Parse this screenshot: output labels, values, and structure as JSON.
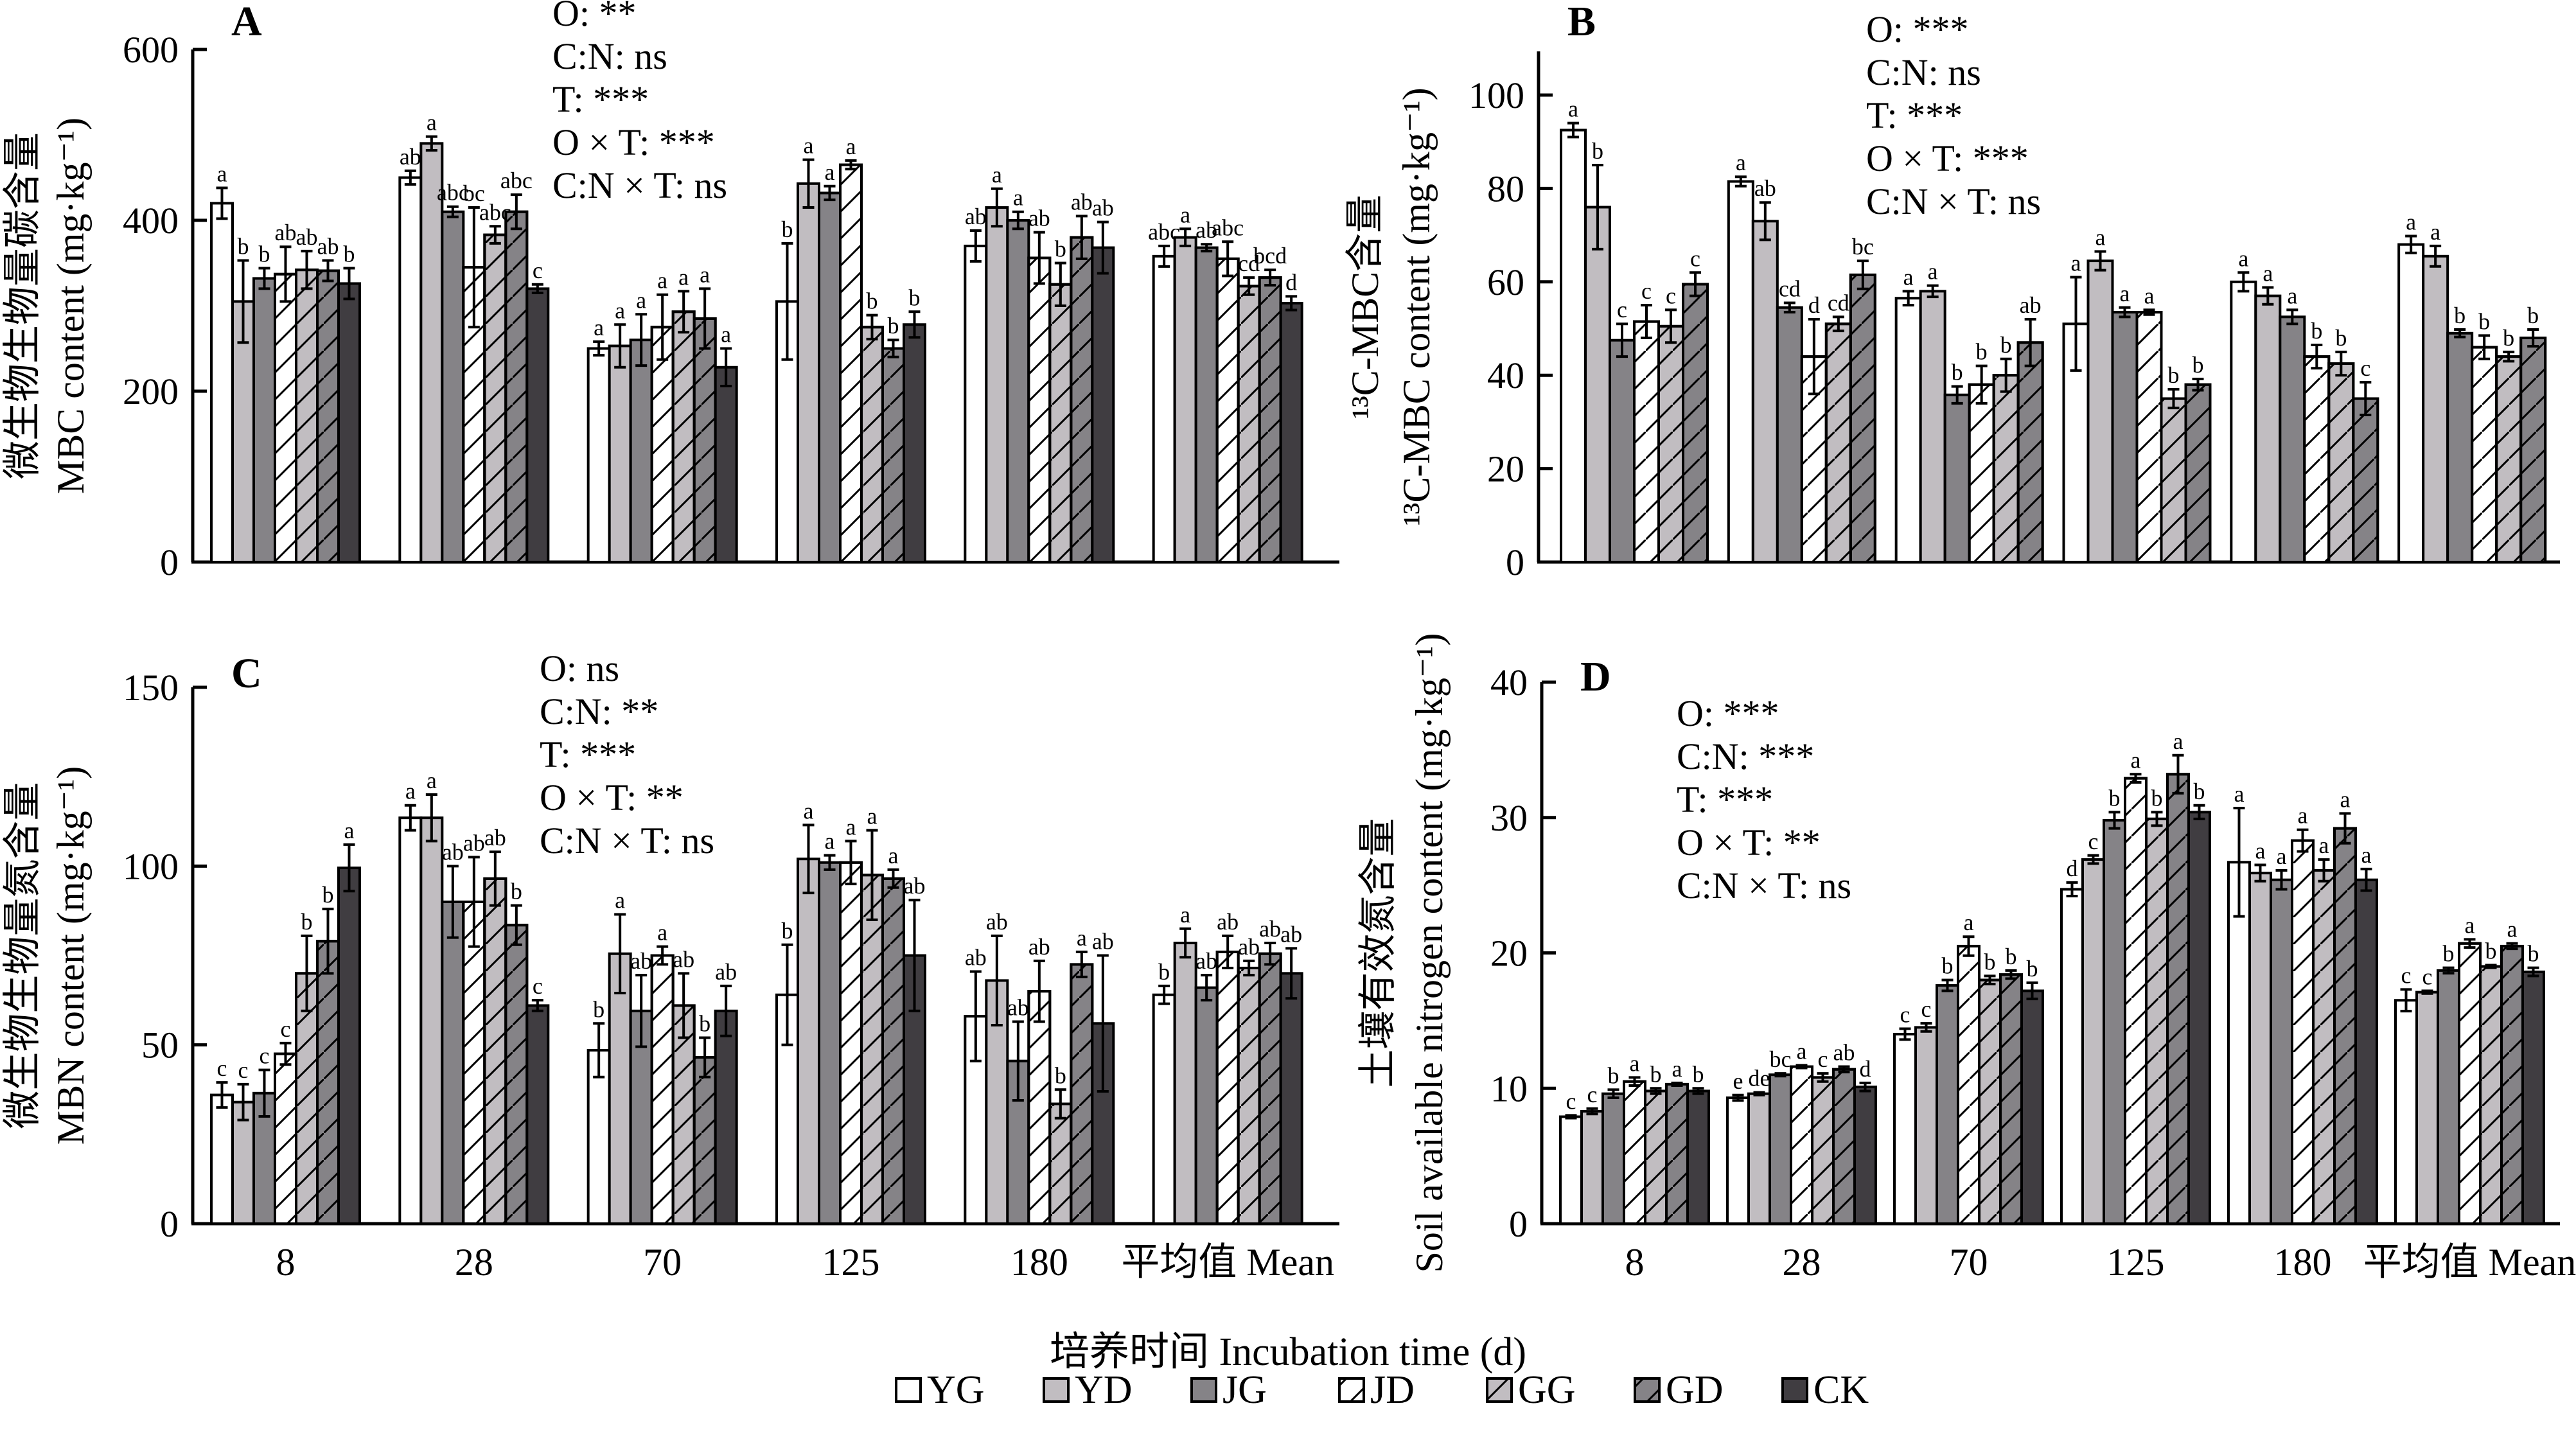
{
  "figure": {
    "xlabel": "培养时间 Incubation time (d)",
    "legend": [
      {
        "key": "YG",
        "label": "YG",
        "fill": "#ffffff",
        "hatch": false
      },
      {
        "key": "YD",
        "label": "YD",
        "fill": "#c1bdc1",
        "hatch": false
      },
      {
        "key": "JG",
        "label": "JG",
        "fill": "#858387",
        "hatch": false
      },
      {
        "key": "JD",
        "label": "JD",
        "fill": "#ffffff",
        "hatch": true
      },
      {
        "key": "GG",
        "label": "GG",
        "fill": "#c1bdc1",
        "hatch": true
      },
      {
        "key": "GD",
        "label": "GD",
        "fill": "#858387",
        "hatch": true
      },
      {
        "key": "CK",
        "label": "CK",
        "fill": "#403d41",
        "hatch": false
      }
    ]
  },
  "chart_data": [
    {
      "type": "bar",
      "panel": "A",
      "ylabel_cn": "微生物生物量碳含量",
      "ylabel_en": "MBC content (mg·kg⁻¹)",
      "ylim": [
        0,
        600
      ],
      "yticks": [
        0,
        200,
        400,
        600
      ],
      "categories": [
        "8",
        "28",
        "70",
        "125",
        "180",
        "平均值 Mean"
      ],
      "stats": [
        "O: **",
        "C:N: ns",
        "T: ***",
        "O × T: ***",
        "C:N × T: ns"
      ],
      "series": [
        {
          "name": "YG",
          "values": [
            420,
            450,
            250,
            305,
            370,
            358
          ],
          "errors": [
            18,
            8,
            8,
            68,
            18,
            12
          ],
          "letters": [
            "a",
            "ab",
            "a",
            "b",
            "ab",
            "abc"
          ]
        },
        {
          "name": "YD",
          "values": [
            305,
            490,
            253,
            443,
            415,
            380
          ],
          "errors": [
            48,
            8,
            25,
            28,
            22,
            10
          ],
          "letters": [
            "b",
            "a",
            "a",
            "a",
            "a",
            "a"
          ]
        },
        {
          "name": "JG",
          "values": [
            332,
            410,
            260,
            432,
            400,
            368
          ],
          "errors": [
            12,
            6,
            30,
            8,
            10,
            4
          ],
          "letters": [
            "b",
            "abc",
            "a",
            "a",
            "a",
            "ab"
          ]
        },
        {
          "name": "JD",
          "values": [
            337,
            345,
            275,
            465,
            356,
            355
          ],
          "errors": [
            32,
            70,
            38,
            5,
            30,
            20
          ],
          "letters": [
            "ab",
            "bc",
            "a",
            "a",
            "ab",
            "abc"
          ]
        },
        {
          "name": "GG",
          "values": [
            342,
            383,
            293,
            275,
            325,
            323
          ],
          "errors": [
            22,
            10,
            24,
            14,
            25,
            10
          ],
          "letters": [
            "ab",
            "abc",
            "a",
            "b",
            "b",
            "cd"
          ]
        },
        {
          "name": "GD",
          "values": [
            341,
            410,
            285,
            250,
            380,
            333
          ],
          "errors": [
            12,
            20,
            35,
            10,
            25,
            9
          ],
          "letters": [
            "ab",
            "abc",
            "a",
            "b",
            "ab",
            "bcd"
          ]
        },
        {
          "name": "CK",
          "values": [
            326,
            320,
            228,
            278,
            368,
            303
          ],
          "errors": [
            18,
            5,
            22,
            15,
            30,
            8
          ],
          "letters": [
            "b",
            "c",
            "a",
            "b",
            "ab",
            "d"
          ]
        }
      ]
    },
    {
      "type": "bar",
      "panel": "B",
      "ylabel_cn": "¹³C-MBC含量",
      "ylabel_en": "¹³C-MBC content (mg·kg⁻¹)",
      "ylim": [
        0,
        110
      ],
      "yticks": [
        0,
        20,
        40,
        60,
        80,
        100
      ],
      "categories": [
        "8",
        "28",
        "70",
        "125",
        "180",
        "平均值 Mean"
      ],
      "stats": [
        "O: ***",
        "C:N: ns",
        "T: ***",
        "O × T: ***",
        "C:N × T: ns"
      ],
      "series": [
        {
          "name": "YG",
          "values": [
            92.5,
            81.5,
            56.5,
            51,
            60,
            68
          ],
          "errors": [
            1.5,
            1,
            1.5,
            10,
            2,
            1.8
          ],
          "letters": [
            "a",
            "a",
            "a",
            "a",
            "a",
            "a"
          ]
        },
        {
          "name": "YD",
          "values": [
            76,
            73,
            58,
            64.5,
            57,
            65.5
          ],
          "errors": [
            9,
            4,
            1.2,
            2,
            1.8,
            2.2
          ],
          "letters": [
            "b",
            "ab",
            "a",
            "a",
            "a",
            "a"
          ]
        },
        {
          "name": "JG",
          "values": [
            47.5,
            54.5,
            35.8,
            53.5,
            52.5,
            49
          ],
          "errors": [
            3.5,
            1,
            1.8,
            1,
            1.5,
            0.8
          ],
          "letters": [
            "c",
            "cd",
            "b",
            "a",
            "a",
            "b"
          ]
        },
        {
          "name": "JD",
          "values": [
            51.5,
            44,
            38,
            53.5,
            44,
            46
          ],
          "errors": [
            3.5,
            8,
            4,
            0.5,
            2.5,
            2.5
          ],
          "letters": [
            "c",
            "d",
            "b",
            "a",
            "b",
            "b"
          ]
        },
        {
          "name": "GG",
          "values": [
            50.5,
            51,
            40,
            35,
            42.5,
            44
          ],
          "errors": [
            3.5,
            1.5,
            3.5,
            2,
            2.5,
            1
          ],
          "letters": [
            "c",
            "cd",
            "b",
            "b",
            "b",
            "b"
          ]
        },
        {
          "name": "GD",
          "values": [
            59.5,
            61.5,
            47,
            38,
            35,
            48
          ],
          "errors": [
            2.5,
            3,
            5,
            1.2,
            3.5,
            1.8
          ],
          "letters": [
            "c",
            "bc",
            "ab",
            "b",
            "c",
            "b"
          ]
        }
      ]
    },
    {
      "type": "bar",
      "panel": "C",
      "ylabel_cn": "微生物生物量氮含量",
      "ylabel_en": "MBN content (mg·kg⁻¹)",
      "ylim": [
        0,
        150
      ],
      "yticks": [
        0,
        50,
        100,
        150
      ],
      "categories": [
        "8",
        "28",
        "70",
        "125",
        "180",
        "平均值 Mean"
      ],
      "stats": [
        "O: ns",
        "C:N: **",
        "T: ***",
        "O × T: **",
        "C:N × T: ns"
      ],
      "series": [
        {
          "name": "YG",
          "values": [
            36,
            113.5,
            48.5,
            64,
            58,
            64
          ],
          "errors": [
            3.5,
            3.5,
            7.5,
            14,
            12.5,
            2.5
          ],
          "letters": [
            "c",
            "a",
            "b",
            "b",
            "ab",
            "b"
          ]
        },
        {
          "name": "YD",
          "values": [
            34,
            113.5,
            75.5,
            102,
            68,
            78.5
          ],
          "errors": [
            5,
            6.5,
            11,
            9.5,
            12.5,
            4
          ],
          "letters": [
            "c",
            "a",
            "a",
            "a",
            "ab",
            "a"
          ]
        },
        {
          "name": "JG",
          "values": [
            36.5,
            90,
            59.5,
            101,
            45.5,
            66
          ],
          "errors": [
            6.5,
            10,
            10,
            2,
            11,
            3.5
          ],
          "letters": [
            "c",
            "ab",
            "ab",
            "a",
            "ab",
            "ab"
          ]
        },
        {
          "name": "JD",
          "values": [
            47.5,
            90,
            75,
            101,
            65,
            76
          ],
          "errors": [
            3,
            12.5,
            2.5,
            6,
            8.5,
            4.5
          ],
          "letters": [
            "c",
            "ab",
            "a",
            "a",
            "ab",
            "ab"
          ]
        },
        {
          "name": "GG",
          "values": [
            70,
            96.5,
            61,
            97.5,
            33.5,
            71.5
          ],
          "errors": [
            10.5,
            7.5,
            9,
            12.5,
            4,
            2
          ],
          "letters": [
            "b",
            "ab",
            "ab",
            "a",
            "b",
            "ab"
          ]
        },
        {
          "name": "GD",
          "values": [
            79,
            83.5,
            46.5,
            96.5,
            72.5,
            75.5
          ],
          "errors": [
            9,
            5.5,
            5.5,
            2.5,
            3.5,
            3
          ],
          "letters": [
            "b",
            "b",
            "b",
            "a",
            "a",
            "ab"
          ]
        },
        {
          "name": "CK",
          "values": [
            99.5,
            61,
            59.5,
            75,
            56,
            70
          ],
          "errors": [
            6.5,
            1.5,
            7,
            15.5,
            19,
            7
          ],
          "letters": [
            "a",
            "c",
            "ab",
            "ab",
            "ab",
            "ab"
          ]
        }
      ]
    },
    {
      "type": "bar",
      "panel": "D",
      "ylabel_cn": "土壤有效氮含量",
      "ylabel_en": "Soil available nitrogen content (mg·kg⁻¹)",
      "ylim": [
        0,
        40
      ],
      "yticks": [
        0,
        10,
        20,
        30,
        40
      ],
      "categories": [
        "8",
        "28",
        "70",
        "125",
        "180",
        "平均值 Mean"
      ],
      "stats": [
        "O: ***",
        "C:N: ***",
        "T: ***",
        "O × T: **",
        "C:N × T: ns"
      ],
      "series": [
        {
          "name": "YG",
          "values": [
            7.9,
            9.3,
            14,
            24.7,
            26.7,
            16.5
          ],
          "errors": [
            0.1,
            0.2,
            0.4,
            0.5,
            4,
            0.8
          ],
          "letters": [
            "c",
            "e",
            "c",
            "d",
            "a",
            "c"
          ]
        },
        {
          "name": "YD",
          "values": [
            8.3,
            9.6,
            14.5,
            26.9,
            25.9,
            17.1
          ],
          "errors": [
            0.2,
            0.1,
            0.3,
            0.3,
            0.6,
            0.1
          ],
          "letters": [
            "c",
            "de",
            "c",
            "c",
            "a",
            "c"
          ]
        },
        {
          "name": "JG",
          "values": [
            9.6,
            11,
            17.6,
            29.8,
            25.4,
            18.7
          ],
          "errors": [
            0.3,
            0.1,
            0.4,
            0.6,
            0.7,
            0.2
          ],
          "letters": [
            "b",
            "bc",
            "b",
            "b",
            "a",
            "b"
          ]
        },
        {
          "name": "JD",
          "values": [
            10.5,
            11.6,
            20.5,
            32.9,
            28.3,
            20.7
          ],
          "errors": [
            0.3,
            0.1,
            0.7,
            0.3,
            0.8,
            0.3
          ],
          "letters": [
            "a",
            "a",
            "a",
            "a",
            "a",
            "a"
          ]
        },
        {
          "name": "GG",
          "values": [
            9.8,
            10.8,
            18,
            29.9,
            26.1,
            19
          ],
          "errors": [
            0.2,
            0.3,
            0.3,
            0.5,
            0.8,
            0.1
          ],
          "letters": [
            "b",
            "c",
            "b",
            "b",
            "a",
            "b"
          ]
        },
        {
          "name": "GD",
          "values": [
            10.3,
            11.4,
            18.4,
            33.2,
            29.2,
            20.5
          ],
          "errors": [
            0.1,
            0.2,
            0.3,
            1.4,
            1.1,
            0.2
          ],
          "letters": [
            "a",
            "ab",
            "b",
            "a",
            "a",
            "a"
          ]
        },
        {
          "name": "CK",
          "values": [
            9.8,
            10.1,
            17.2,
            30.4,
            25.4,
            18.6
          ],
          "errors": [
            0.2,
            0.3,
            0.6,
            0.5,
            0.8,
            0.3
          ],
          "letters": [
            "b",
            "d",
            "b",
            "b",
            "a",
            "b"
          ]
        }
      ]
    }
  ]
}
